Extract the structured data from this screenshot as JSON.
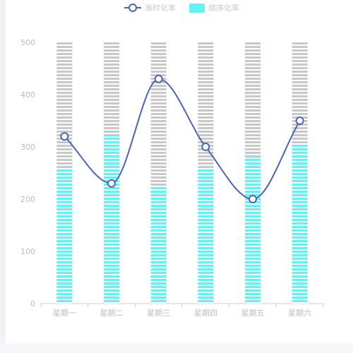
{
  "legend": [
    {
      "name": "准时化率",
      "color": "#4c63b6",
      "marker": "line-circle"
    },
    {
      "name": "顺序化率",
      "color": "#5af6f6",
      "marker": "rect"
    }
  ],
  "chart_data": {
    "type": "bar",
    "categories": [
      "星期一",
      "星期二",
      "星期三",
      "星期四",
      "星期五",
      "星期六"
    ],
    "ylim": [
      0,
      500
    ],
    "yticks": [
      "0",
      "100",
      "200",
      "300",
      "400",
      "500"
    ],
    "background_bar": {
      "value": 500,
      "color": "#c8c8c8"
    },
    "series": [
      {
        "name": "顺序化率",
        "type": "bar",
        "color": "#5af6f6",
        "values": [
          258,
          322,
          224,
          258,
          282,
          306
        ]
      },
      {
        "name": "准时化率",
        "type": "line",
        "smooth": true,
        "color": "#4c63b6",
        "values": [
          320,
          230,
          430,
          300,
          200,
          350
        ]
      }
    ],
    "grid": false,
    "legend_position": "top-center"
  }
}
